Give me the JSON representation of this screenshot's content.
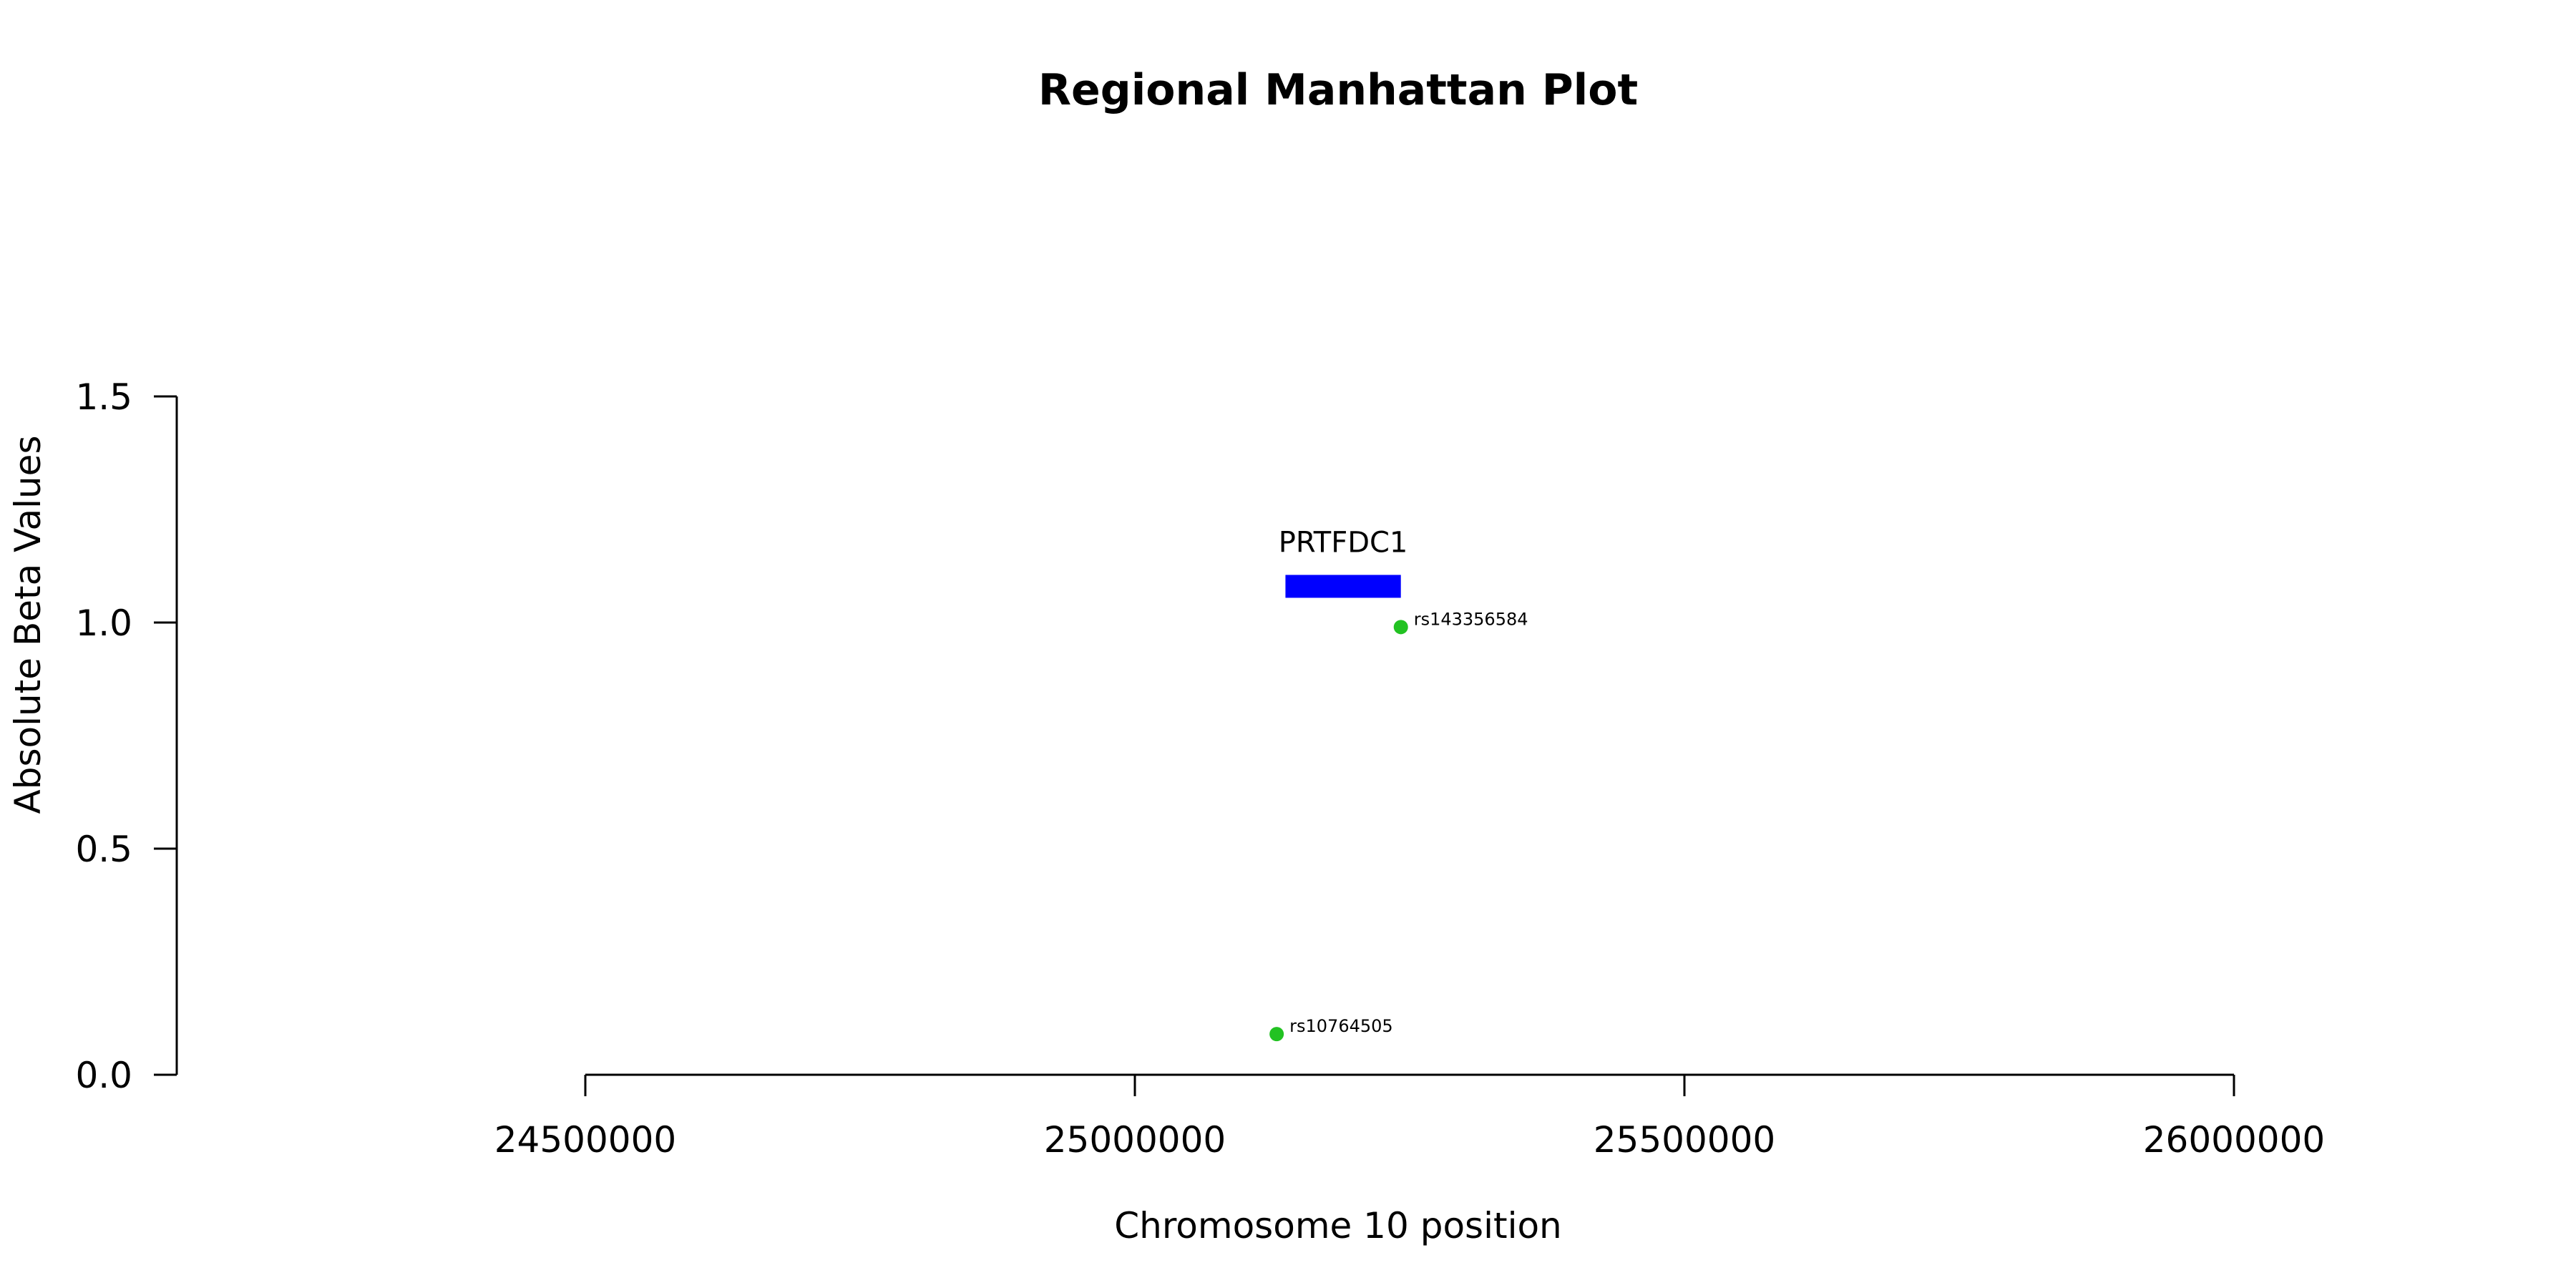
{
  "chart_data": {
    "type": "scatter",
    "title": "Regional Manhattan Plot",
    "xlabel": "Chromosome 10 position",
    "ylabel": "Absolute Beta Values",
    "xlim": [
      24000000,
      26500000
    ],
    "ylim": [
      0,
      1.5
    ],
    "x_axis_ticks": [
      24500000,
      25000000,
      25500000,
      26000000
    ],
    "x_tick_labels": [
      "24500000",
      "25000000",
      "25500000",
      "26000000"
    ],
    "y_axis_ticks": [
      0,
      0.5,
      1,
      1.5
    ],
    "y_tick_labels": [
      "0.0",
      "0.5",
      "1.0",
      "1.5"
    ],
    "grid": false,
    "points": [
      {
        "label": "rs143356584",
        "x": 25242000,
        "y": 0.99,
        "color": "#22c222"
      },
      {
        "label": "rs10764505",
        "x": 25129000,
        "y": 0.09,
        "color": "#22c222"
      }
    ],
    "genes": [
      {
        "name": "PRTFDC1",
        "start": 25137000,
        "end": 25242000,
        "y": 1.08,
        "color": "#0000ff"
      }
    ]
  }
}
